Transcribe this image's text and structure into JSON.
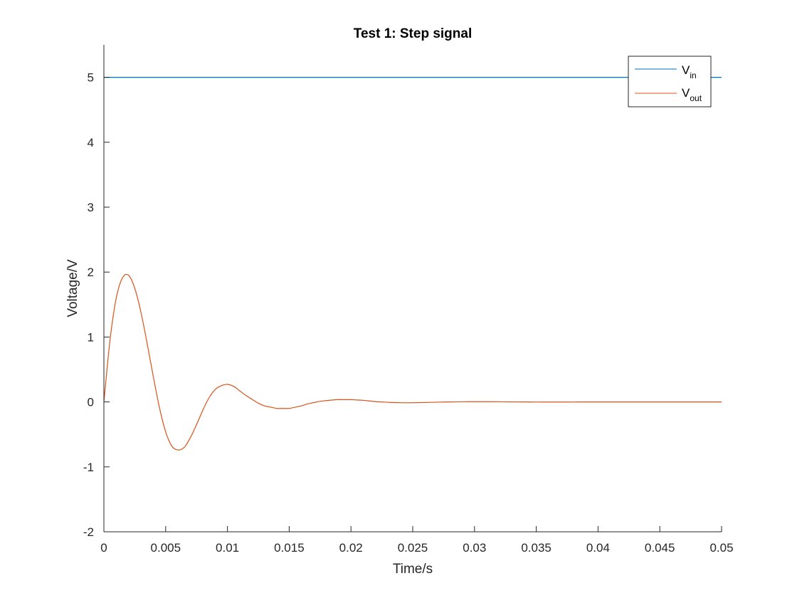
{
  "chart_data": {
    "type": "line",
    "title": "Test 1: Step signal",
    "xlabel": "Time/s",
    "ylabel": "Voltage/V",
    "xlim": [
      0,
      0.05
    ],
    "ylim": [
      -2,
      5.5
    ],
    "x_ticks": [
      0,
      0.005,
      0.01,
      0.015,
      0.02,
      0.025,
      0.03,
      0.035,
      0.04,
      0.045,
      0.05
    ],
    "x_tick_labels": [
      "0",
      "0.005",
      "0.01",
      "0.015",
      "0.02",
      "0.025",
      "0.03",
      "0.035",
      "0.04",
      "0.045",
      "0.05"
    ],
    "y_ticks": [
      -2,
      -1,
      0,
      1,
      2,
      3,
      4,
      5
    ],
    "y_tick_labels": [
      "-2",
      "-1",
      "0",
      "1",
      "2",
      "3",
      "4",
      "5"
    ],
    "grid": false,
    "legend_position": "top-right",
    "series": [
      {
        "name": "V",
        "name_subscript": "in",
        "color": "#0072bd",
        "x": [
          0,
          0.05
        ],
        "y": [
          5,
          5
        ]
      },
      {
        "name": "V",
        "name_subscript": "out",
        "color": "#d95319",
        "x": [
          0,
          0.0005,
          0.001,
          0.0015,
          0.002,
          0.0025,
          0.003,
          0.0035,
          0.004,
          0.0045,
          0.005,
          0.0055,
          0.006,
          0.0065,
          0.007,
          0.0075,
          0.008,
          0.0085,
          0.009,
          0.0095,
          0.01,
          0.0105,
          0.011,
          0.0115,
          0.012,
          0.0125,
          0.013,
          0.0135,
          0.014,
          0.0145,
          0.015,
          0.0155,
          0.016,
          0.0165,
          0.017,
          0.0175,
          0.018,
          0.0185,
          0.019,
          0.0195,
          0.02,
          0.0205,
          0.021,
          0.0215,
          0.022,
          0.0225,
          0.023,
          0.0235,
          0.024,
          0.0245,
          0.025,
          0.026,
          0.027,
          0.028,
          0.029,
          0.03,
          0.031,
          0.032,
          0.033,
          0.034,
          0.035,
          0.036,
          0.037,
          0.038,
          0.039,
          0.04,
          0.042,
          0.044,
          0.046,
          0.048,
          0.05
        ],
        "y": [
          0,
          0.96,
          1.6,
          1.91,
          1.95,
          1.75,
          1.38,
          0.9,
          0.39,
          -0.09,
          -0.46,
          -0.68,
          -0.74,
          -0.7,
          -0.55,
          -0.35,
          -0.13,
          0.06,
          0.19,
          0.25,
          0.27,
          0.24,
          0.17,
          0.1,
          0.04,
          -0.02,
          -0.06,
          -0.08,
          -0.1,
          -0.1,
          -0.1,
          -0.08,
          -0.06,
          -0.03,
          -0.01,
          0.01,
          0.02,
          0.03,
          0.035,
          0.035,
          0.035,
          0.03,
          0.025,
          0.015,
          0.005,
          0,
          -0.005,
          -0.01,
          -0.012,
          -0.013,
          -0.012,
          -0.009,
          -0.004,
          0,
          0.003,
          0.004,
          0.004,
          0.003,
          0.001,
          0,
          -0.001,
          -0.0015,
          -0.0015,
          -0.001,
          0,
          0,
          0,
          0,
          0,
          0,
          0
        ]
      }
    ]
  }
}
